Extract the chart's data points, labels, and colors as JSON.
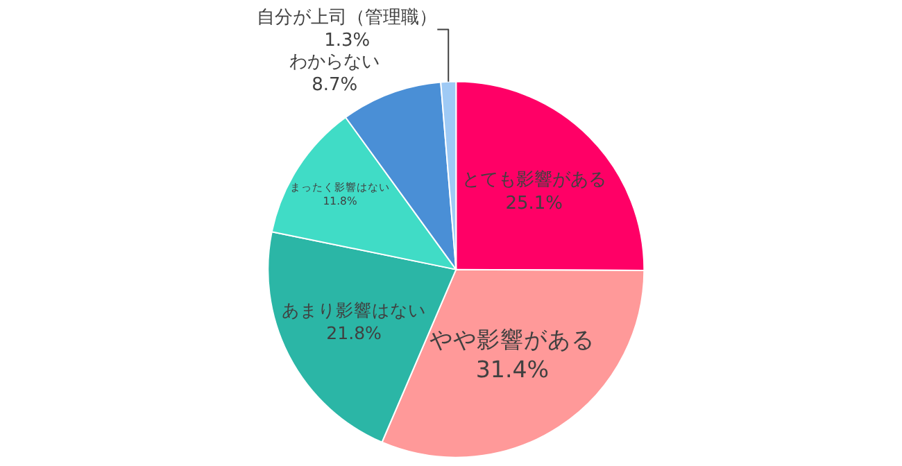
{
  "chart_data": {
    "type": "pie",
    "categories": [
      "とても影響がある",
      "やや影響がある",
      "あまり影響はない",
      "まったく影響はない",
      "わからない",
      "自分が上司（管理職）"
    ],
    "values": [
      25.1,
      31.4,
      21.8,
      11.8,
      8.7,
      1.3
    ],
    "colors": [
      "#ff0066",
      "#ff9999",
      "#2bb6a6",
      "#40dcc6",
      "#4a8fd6",
      "#9fcaf5"
    ],
    "value_labels": [
      "25.1%",
      "31.4%",
      "21.8%",
      "11.8%",
      "8.7%",
      "1.3%"
    ],
    "legend": false
  }
}
